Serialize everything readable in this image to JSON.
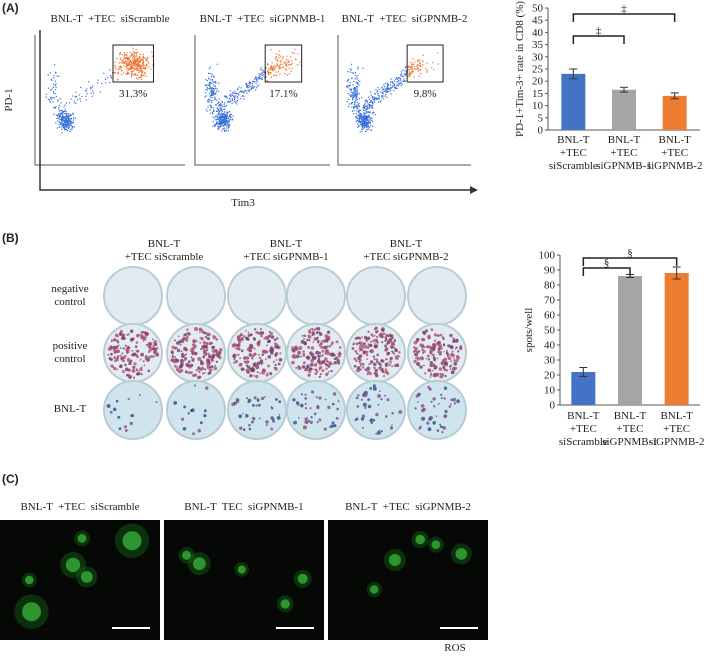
{
  "panel_labels": [
    "(A)",
    "(B)",
    "(C)"
  ],
  "flow_plots": {
    "y_label": "PD-1",
    "x_label": "Tim3",
    "plots": [
      {
        "title": "BNL-T  +TEC  siScramble",
        "gate_percent": "31.3%"
      },
      {
        "title": "BNL-T  +TEC  siGPNMB-1",
        "gate_percent": "17.1%"
      },
      {
        "title": "BNL-T  +TEC  siGPNMB-2",
        "gate_percent": "9.8%"
      }
    ]
  },
  "elispot": {
    "columns": [
      "BNL-T\n+TEC  siScramble",
      "BNL-T\n+TEC  siGPNMB-1",
      "BNL-T\n+TEC  siGPNMB-2"
    ],
    "rows": [
      "negative\ncontrol",
      "positive\ncontrol",
      "BNL-T"
    ]
  },
  "ros": {
    "columns": [
      "BNL-T  +TEC  siScramble",
      "BNL-T  TEC  siGPNMB-1",
      "BNL-T  +TEC  siGPNMB-2"
    ],
    "stain_label": "ROS"
  },
  "chart_data": [
    {
      "type": "bar",
      "y_label": "PD-1+Tim-3+ rate in CD8 (%)",
      "categories": [
        "BNL-T\n+TEC\nsiScramble",
        "BNL-T\n+TEC\nsiGPNMB-1",
        "BNL-T\n+TEC\nsiGPNMB-2"
      ],
      "values": [
        23,
        16.5,
        14
      ],
      "errors": [
        2,
        1,
        1.2
      ],
      "colors": [
        "#4472c4",
        "#a5a5a5",
        "#ed7d31"
      ],
      "ylim": [
        0,
        50
      ],
      "yticks": [
        0,
        5,
        10,
        15,
        20,
        25,
        30,
        35,
        40,
        45,
        50
      ],
      "annotations": [
        "‡",
        "‡"
      ]
    },
    {
      "type": "bar",
      "y_label": "spots/well",
      "categories": [
        "BNL-T\n+TEC\nsiScramble",
        "BNL-T\n+TEC\nsiGPNMB-1",
        "BNL-T\n+TEC\nsiGPNMB-2"
      ],
      "values": [
        22,
        86,
        88
      ],
      "errors": [
        3,
        1,
        4
      ],
      "colors": [
        "#4472c4",
        "#a5a5a5",
        "#ed7d31"
      ],
      "ylim": [
        0,
        100
      ],
      "yticks": [
        0,
        10,
        20,
        30,
        40,
        50,
        60,
        70,
        80,
        90,
        100
      ],
      "annotations": [
        "§",
        "§"
      ]
    }
  ]
}
